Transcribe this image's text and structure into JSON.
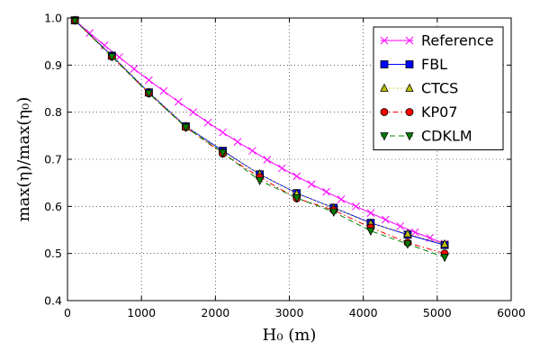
{
  "chart_data": {
    "type": "line",
    "xlabel": "H₀ (m)",
    "ylabel": "max(η)/max(η₀)",
    "xlim": [
      0,
      6000
    ],
    "ylim": [
      0.4,
      1.0
    ],
    "xticks": [
      0,
      1000,
      2000,
      3000,
      4000,
      5000,
      6000
    ],
    "yticks": [
      0.4,
      0.5,
      0.6,
      0.7,
      0.8,
      0.9,
      1.0
    ],
    "xtick_labels": [
      "0",
      "1000",
      "2000",
      "3000",
      "4000",
      "5000",
      "6000"
    ],
    "ytick_labels": [
      "0.4",
      "0.5",
      "0.6",
      "0.7",
      "0.8",
      "0.9",
      "1.0"
    ],
    "grid": true,
    "legend_position": "top-right",
    "series": [
      {
        "name": "Reference",
        "color": "#ff00ff",
        "marker": "x",
        "linestyle": "solid",
        "x": [
          100,
          300,
          500,
          700,
          900,
          1100,
          1300,
          1500,
          1700,
          1900,
          2100,
          2300,
          2500,
          2700,
          2900,
          3100,
          3300,
          3500,
          3700,
          3900,
          4100,
          4300,
          4500,
          4700,
          4900,
          5100
        ],
        "y": [
          0.995,
          0.968,
          0.942,
          0.917,
          0.892,
          0.868,
          0.845,
          0.822,
          0.8,
          0.778,
          0.757,
          0.737,
          0.718,
          0.699,
          0.681,
          0.664,
          0.647,
          0.631,
          0.615,
          0.6,
          0.586,
          0.572,
          0.558,
          0.545,
          0.533,
          0.521
        ]
      },
      {
        "name": "FBL",
        "color": "#0000ff",
        "marker": "square",
        "linestyle": "solid",
        "x": [
          100,
          600,
          1100,
          1600,
          2100,
          2600,
          3100,
          3600,
          4100,
          4600,
          5100
        ],
        "y": [
          0.995,
          0.92,
          0.842,
          0.77,
          0.718,
          0.668,
          0.628,
          0.597,
          0.565,
          0.54,
          0.518
        ]
      },
      {
        "name": "CTCS",
        "color": "#bfbf00",
        "marker": "triangle-up",
        "linestyle": "dotted",
        "x": [
          100,
          600,
          1100,
          1600,
          2100,
          2600,
          3100,
          3600,
          4100,
          4600,
          5100
        ],
        "y": [
          0.995,
          0.92,
          0.842,
          0.77,
          0.716,
          0.669,
          0.627,
          0.597,
          0.564,
          0.542,
          0.52
        ]
      },
      {
        "name": "KP07",
        "color": "#ff0000",
        "marker": "circle",
        "linestyle": "dashdot",
        "x": [
          100,
          600,
          1100,
          1600,
          2100,
          2600,
          3100,
          3600,
          4100,
          4600,
          5100
        ],
        "y": [
          0.995,
          0.918,
          0.84,
          0.768,
          0.712,
          0.662,
          0.617,
          0.592,
          0.555,
          0.523,
          0.5
        ]
      },
      {
        "name": "CDKLM",
        "color": "#008000",
        "marker": "triangle-down",
        "linestyle": "dashed",
        "x": [
          100,
          600,
          1100,
          1600,
          2100,
          2600,
          3100,
          3600,
          4100,
          4600,
          5100
        ],
        "y": [
          0.995,
          0.918,
          0.84,
          0.768,
          0.714,
          0.655,
          0.618,
          0.588,
          0.548,
          0.52,
          0.492
        ]
      }
    ]
  }
}
